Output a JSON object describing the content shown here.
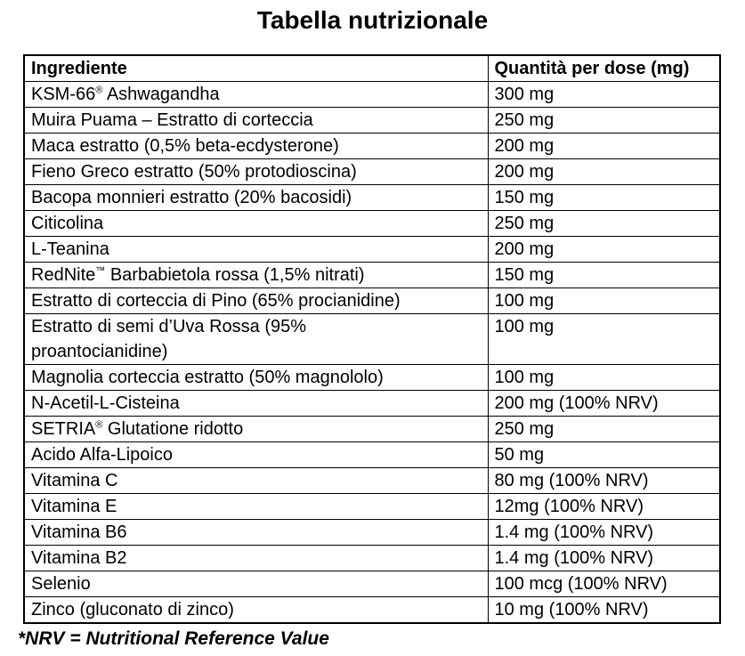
{
  "title": "Tabella nutrizionale",
  "colors": {
    "text": "#000000",
    "background": "#ffffff",
    "border": "#000000"
  },
  "table": {
    "headers": {
      "ingredient": "Ingrediente",
      "quantity": "Quantità per dose (mg)"
    },
    "rows": [
      {
        "ingredient": "KSM-66® Ashwagandha",
        "quantity": "300 mg"
      },
      {
        "ingredient": "Muira Puama – Estratto di corteccia",
        "quantity": "250 mg"
      },
      {
        "ingredient": "Maca estratto (0,5% beta-ecdysterone)",
        "quantity": "200 mg"
      },
      {
        "ingredient": "Fieno Greco estratto (50% protodioscina)",
        "quantity": "200 mg"
      },
      {
        "ingredient": "Bacopa monnieri estratto (20% bacosidi)",
        "quantity": "150 mg"
      },
      {
        "ingredient": "Citicolina",
        "quantity": "250 mg"
      },
      {
        "ingredient": "L-Teanina",
        "quantity": "200 mg"
      },
      {
        "ingredient": "RedNite™ Barbabietola rossa (1,5% nitrati)",
        "quantity": "150 mg"
      },
      {
        "ingredient": "Estratto di corteccia di Pino (65% procianidine)",
        "quantity": "100 mg"
      },
      {
        "ingredient": "Estratto di semi d’Uva Rossa (95%\nproantocianidine)",
        "quantity": "100 mg"
      },
      {
        "ingredient": "Magnolia corteccia estratto (50% magnololo)",
        "quantity": "100 mg"
      },
      {
        "ingredient": "N-Acetil-L-Cisteina",
        "quantity": "200 mg (100% NRV)"
      },
      {
        "ingredient": "SETRIA® Glutatione ridotto",
        "quantity": "250 mg"
      },
      {
        "ingredient": "Acido Alfa-Lipoico",
        "quantity": "50 mg"
      },
      {
        "ingredient": "Vitamina C",
        "quantity": "80 mg (100% NRV)"
      },
      {
        "ingredient": "Vitamina E",
        "quantity": "12mg (100% NRV)"
      },
      {
        "ingredient": "Vitamina B6",
        "quantity": "1.4 mg (100% NRV)"
      },
      {
        "ingredient": "Vitamina B2",
        "quantity": "1.4 mg (100% NRV)"
      },
      {
        "ingredient": "Selenio",
        "quantity": "100 mcg (100% NRV)"
      },
      {
        "ingredient": "Zinco (gluconato di zinco)",
        "quantity": "10 mg (100% NRV)"
      }
    ]
  },
  "footnote": "*NRV = Nutritional Reference Value"
}
